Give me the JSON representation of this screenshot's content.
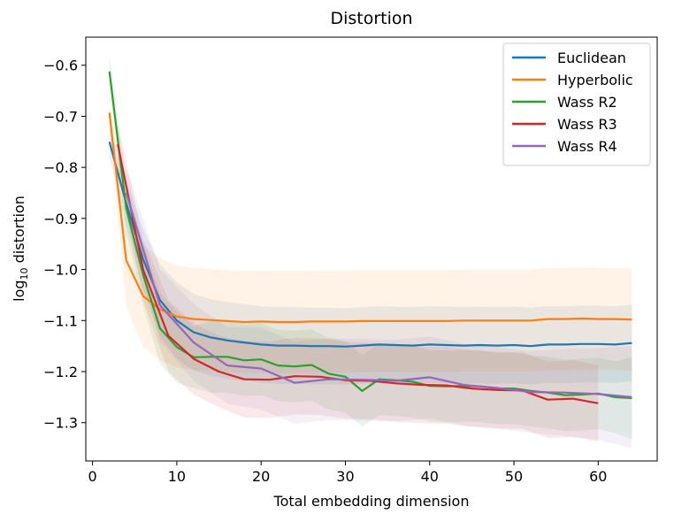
{
  "chart_data": {
    "type": "line",
    "title": "Distortion",
    "xlabel": "Total embedding dimension",
    "ylabel": "log10 distortion",
    "ylabel_main": "log",
    "ylabel_sub": "10",
    "ylabel_rest": " distortion",
    "xlim": [
      -0.8,
      67
    ],
    "ylim": [
      -1.375,
      -0.545
    ],
    "xticks": [
      0,
      10,
      20,
      30,
      40,
      50,
      60
    ],
    "xtick_labels": [
      "0",
      "10",
      "20",
      "30",
      "40",
      "50",
      "60"
    ],
    "yticks": [
      -0.6,
      -0.7,
      -0.8,
      -0.9,
      -1.0,
      -1.1,
      -1.2,
      -1.3
    ],
    "ytick_labels": [
      "−0.6",
      "−0.7",
      "−0.8",
      "−0.9",
      "−1.0",
      "−1.1",
      "−1.2",
      "−1.3"
    ],
    "legend_position": "top-right",
    "series": [
      {
        "name": "Euclidean",
        "color": "#1f77b4",
        "x": [
          2,
          4,
          6,
          8,
          10,
          12,
          14,
          16,
          18,
          20,
          22,
          24,
          26,
          28,
          30,
          32,
          34,
          36,
          38,
          40,
          42,
          44,
          46,
          48,
          50,
          52,
          54,
          56,
          58,
          60,
          62,
          64
        ],
        "y": [
          -0.75,
          -0.87,
          -0.98,
          -1.06,
          -1.1,
          -1.123,
          -1.133,
          -1.139,
          -1.143,
          -1.147,
          -1.149,
          -1.149,
          -1.15,
          -1.15,
          -1.151,
          -1.149,
          -1.147,
          -1.148,
          -1.149,
          -1.147,
          -1.148,
          -1.149,
          -1.148,
          -1.149,
          -1.148,
          -1.15,
          -1.147,
          -1.147,
          -1.146,
          -1.146,
          -1.147,
          -1.144
        ],
        "band": [
          0.03,
          0.045,
          0.06,
          0.07,
          0.075,
          0.075,
          0.075,
          0.075,
          0.075,
          0.075,
          0.075,
          0.075,
          0.075,
          0.075,
          0.075,
          0.075,
          0.075,
          0.075,
          0.075,
          0.075,
          0.075,
          0.075,
          0.075,
          0.075,
          0.075,
          0.075,
          0.075,
          0.075,
          0.075,
          0.075,
          0.075,
          0.075
        ]
      },
      {
        "name": "Hyperbolic",
        "color": "#ff7f0e",
        "x": [
          2,
          4,
          6,
          8,
          10,
          12,
          14,
          16,
          18,
          20,
          22,
          24,
          26,
          28,
          30,
          32,
          34,
          36,
          38,
          40,
          42,
          44,
          46,
          48,
          50,
          52,
          54,
          56,
          58,
          60,
          62,
          64
        ],
        "y": [
          -0.693,
          -0.982,
          -1.052,
          -1.078,
          -1.092,
          -1.097,
          -1.099,
          -1.101,
          -1.103,
          -1.102,
          -1.103,
          -1.103,
          -1.102,
          -1.102,
          -1.102,
          -1.101,
          -1.101,
          -1.101,
          -1.101,
          -1.101,
          -1.101,
          -1.1,
          -1.1,
          -1.1,
          -1.1,
          -1.1,
          -1.097,
          -1.097,
          -1.096,
          -1.097,
          -1.097,
          -1.098
        ],
        "band": [
          0.02,
          0.09,
          0.1,
          0.1,
          0.1,
          0.1,
          0.1,
          0.1,
          0.1,
          0.1,
          0.1,
          0.1,
          0.1,
          0.1,
          0.1,
          0.1,
          0.1,
          0.1,
          0.1,
          0.1,
          0.1,
          0.1,
          0.1,
          0.1,
          0.1,
          0.1,
          0.1,
          0.1,
          0.1,
          0.1,
          0.1,
          0.1
        ]
      },
      {
        "name": "Wass R2",
        "color": "#2ca02c",
        "x": [
          2,
          4,
          6,
          8,
          10,
          12,
          14,
          16,
          18,
          20,
          22,
          24,
          26,
          28,
          30,
          32,
          34,
          36,
          38,
          40,
          42,
          44,
          46,
          48,
          50,
          52,
          54,
          56,
          58,
          60,
          62,
          64
        ],
        "y": [
          -0.612,
          -0.88,
          -1.01,
          -1.115,
          -1.152,
          -1.172,
          -1.171,
          -1.171,
          -1.178,
          -1.176,
          -1.188,
          -1.19,
          -1.187,
          -1.204,
          -1.21,
          -1.238,
          -1.215,
          -1.217,
          -1.22,
          -1.228,
          -1.229,
          -1.228,
          -1.229,
          -1.233,
          -1.233,
          -1.238,
          -1.241,
          -1.246,
          -1.245,
          -1.243,
          -1.25,
          -1.252
        ],
        "band": [
          0.03,
          0.05,
          0.06,
          0.07,
          0.07,
          0.06,
          0.07,
          0.07,
          0.07,
          0.07,
          0.07,
          0.07,
          0.07,
          0.07,
          0.07,
          0.07,
          0.07,
          0.07,
          0.07,
          0.07,
          0.07,
          0.07,
          0.07,
          0.07,
          0.07,
          0.07,
          0.07,
          0.07,
          0.07,
          0.07,
          0.07,
          0.08
        ]
      },
      {
        "name": "Wass R3",
        "color": "#d62728",
        "x": [
          3,
          6,
          9,
          12,
          15,
          18,
          21,
          24,
          27,
          30,
          33,
          36,
          39,
          42,
          45,
          48,
          51,
          54,
          57,
          60
        ],
        "y": [
          -0.755,
          -1.0,
          -1.13,
          -1.175,
          -1.2,
          -1.215,
          -1.216,
          -1.209,
          -1.21,
          -1.217,
          -1.218,
          -1.223,
          -1.226,
          -1.227,
          -1.233,
          -1.236,
          -1.237,
          -1.255,
          -1.253,
          -1.262
        ],
        "band": [
          0.04,
          0.06,
          0.07,
          0.07,
          0.07,
          0.075,
          0.075,
          0.075,
          0.075,
          0.075,
          0.075,
          0.075,
          0.075,
          0.075,
          0.075,
          0.075,
          0.075,
          0.075,
          0.075,
          0.075
        ]
      },
      {
        "name": "Wass R4",
        "color": "#9467bd",
        "x": [
          4,
          8,
          12,
          16,
          20,
          24,
          28,
          32,
          36,
          40,
          44,
          48,
          52,
          56,
          60,
          64
        ],
        "y": [
          -0.85,
          -1.07,
          -1.143,
          -1.188,
          -1.194,
          -1.222,
          -1.215,
          -1.216,
          -1.218,
          -1.211,
          -1.226,
          -1.232,
          -1.24,
          -1.241,
          -1.244,
          -1.25
        ],
        "band": [
          0.05,
          0.07,
          0.075,
          0.075,
          0.08,
          0.08,
          0.08,
          0.08,
          0.08,
          0.08,
          0.08,
          0.08,
          0.08,
          0.085,
          0.09,
          0.1
        ]
      }
    ]
  }
}
